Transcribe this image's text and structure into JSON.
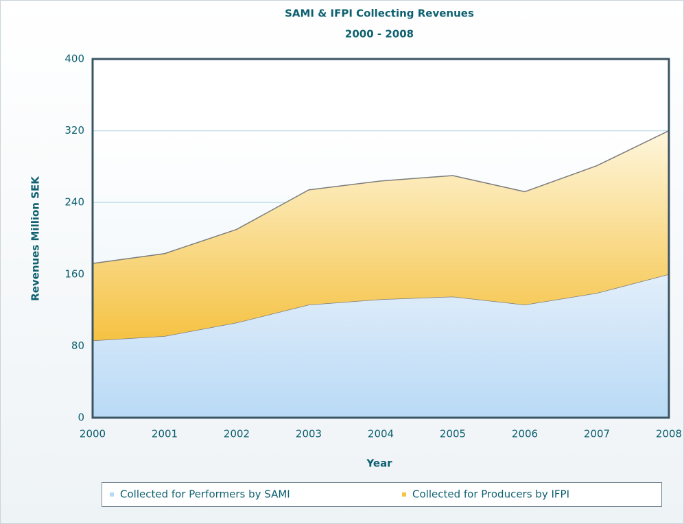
{
  "chart_data": {
    "type": "area",
    "stacked": true,
    "title": "SAMI & IFPI Collecting Revenues",
    "subtitle": "2000 - 2008",
    "x_label": "Year",
    "y_label": "Revenues Million SEK",
    "categories": [
      "2000",
      "2001",
      "2002",
      "2003",
      "2004",
      "2005",
      "2006",
      "2007",
      "2008"
    ],
    "series": [
      {
        "name": "Collected for Performers by SAMI",
        "color": "#b9daf6",
        "values": [
          86,
          91,
          106,
          126,
          132,
          135,
          126,
          139,
          160
        ]
      },
      {
        "name": "Collected for Producers by IFPI",
        "color": "#f5c242",
        "values": [
          86,
          92,
          104,
          128,
          132,
          135,
          126,
          142,
          160
        ]
      }
    ],
    "ylim": [
      0,
      400
    ],
    "yticks": [
      0,
      80,
      160,
      240,
      320,
      400
    ],
    "grid": true,
    "legend": "bottom"
  }
}
